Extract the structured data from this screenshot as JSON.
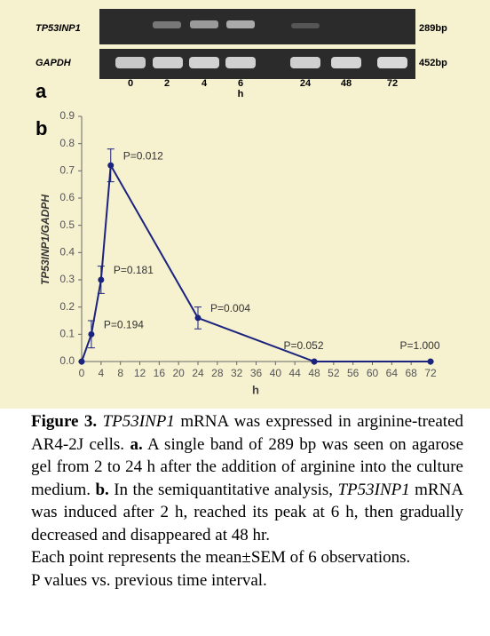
{
  "panel_a": {
    "label": "a",
    "row_labels": [
      "TP53INP1",
      "GAPDH"
    ],
    "sizes": [
      "289bp",
      "452bp"
    ],
    "lanes": [
      "0",
      "2",
      "4",
      "6",
      "24",
      "48",
      "72"
    ],
    "lane_unit": "h"
  },
  "chart_data": {
    "type": "line",
    "panel_label": "b",
    "x_label": "h",
    "y_label": "TP53INP1/GADPH",
    "x": [
      0,
      2,
      4,
      6,
      24,
      48,
      72
    ],
    "series": [
      {
        "name": "TP53INP1/GADPH",
        "color": "#1a237e",
        "values": [
          0,
          0.1,
          0.3,
          0.72,
          0.16,
          0,
          0
        ],
        "errors": [
          0,
          0.05,
          0.05,
          0.06,
          0.04,
          0,
          0
        ]
      }
    ],
    "point_labels": [
      null,
      "P=0.194",
      "P=0.181",
      "P=0.012",
      "P=0.004",
      "P=0.052",
      "P=1.000"
    ],
    "xlim": [
      0,
      72
    ],
    "ylim": [
      0,
      0.9
    ],
    "xticks": [
      0,
      4,
      8,
      12,
      16,
      20,
      24,
      28,
      32,
      36,
      40,
      44,
      48,
      52,
      56,
      60,
      64,
      68,
      72
    ],
    "yticks": [
      {
        "value": 0,
        "label": "0.0"
      },
      0.1,
      0.2,
      0.3,
      0.4,
      0.5,
      0.6,
      0.7,
      0.8,
      0.9
    ],
    "grid": false
  },
  "caption": {
    "parts": [
      "Figure 3.",
      "TP53INP1",
      "mRNA was expressed in arginine-treated AR4-2J cells.",
      "a.",
      "A single band of 289 bp was seen on agarose gel from 2 to 24 h after the addition of arginine into the culture medium.",
      "b.",
      "In the semiquantitative analysis,",
      "TP53INP1",
      "mRNA was induced after 2 h, reached its peak at 6 h, then gradually decreased and disappeared at 48 hr."
    ],
    "notes": [
      "Each point represents the mean±SEM of 6 observations.",
      "P values vs. previous time interval."
    ]
  }
}
